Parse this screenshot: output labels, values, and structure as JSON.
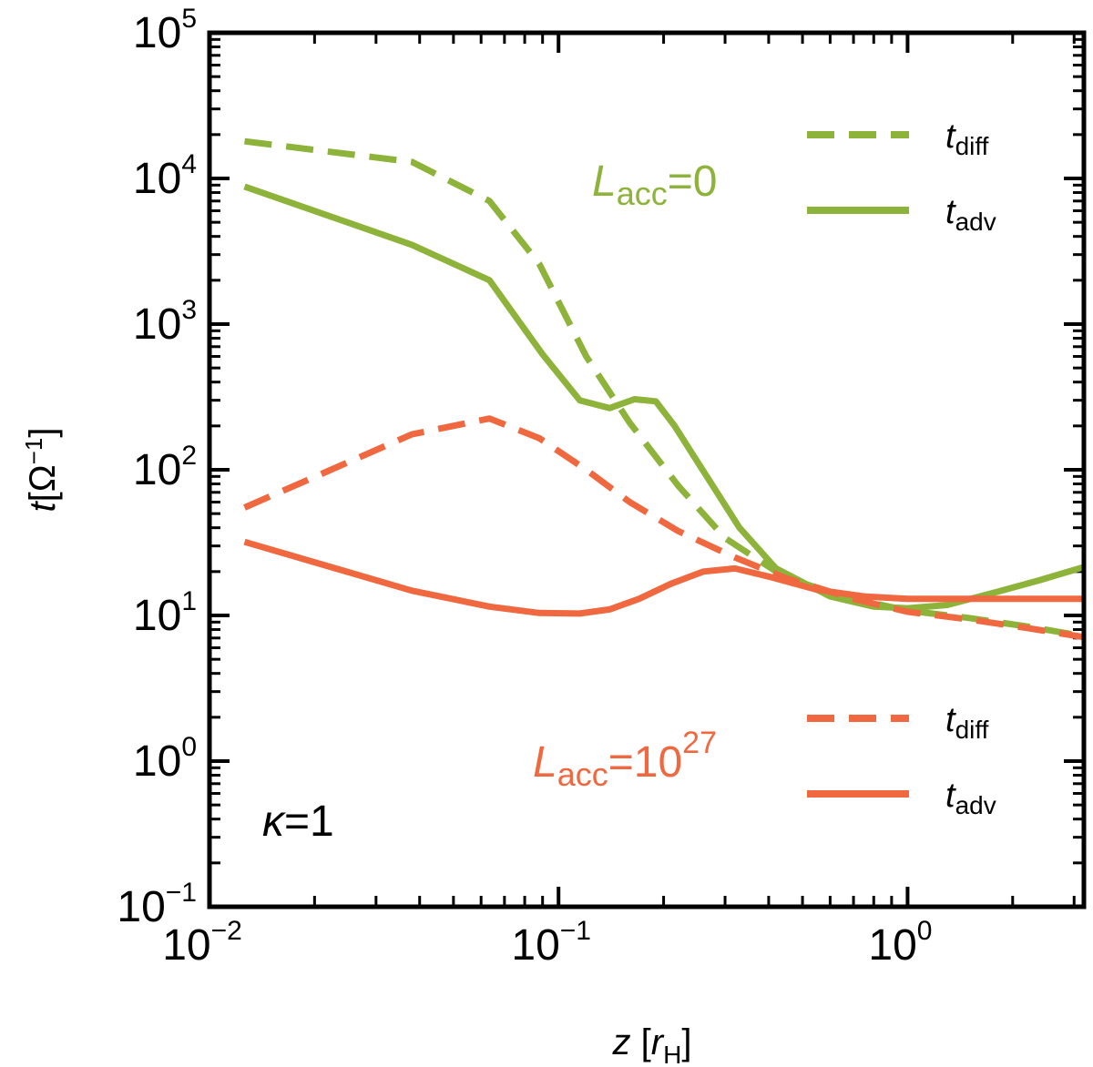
{
  "chart_data": {
    "type": "line",
    "xscale": "log",
    "yscale": "log",
    "xlim": [
      0.01,
      3.2
    ],
    "ylim": [
      0.1,
      100000
    ],
    "xlabel": {
      "var": "z",
      "open": "[",
      "unit": "r",
      "unit_sub": "H",
      "close": "]"
    },
    "ylabel": {
      "var": "t",
      "bracket": "[Ω",
      "sup": "−1",
      "close": "]"
    },
    "x_ticks": [
      {
        "value": 0.01,
        "base": "10",
        "exp": "−2"
      },
      {
        "value": 0.1,
        "base": "10",
        "exp": "−1"
      },
      {
        "value": 1,
        "base": "10",
        "exp": "0"
      }
    ],
    "y_ticks": [
      {
        "value": 0.1,
        "base": "10",
        "exp": "−1"
      },
      {
        "value": 1,
        "base": "10",
        "exp": "0"
      },
      {
        "value": 10,
        "base": "10",
        "exp": "1"
      },
      {
        "value": 100,
        "base": "10",
        "exp": "2"
      },
      {
        "value": 1000,
        "base": "10",
        "exp": "3"
      },
      {
        "value": 10000,
        "base": "10",
        "exp": "4"
      },
      {
        "value": 100000,
        "base": "10",
        "exp": "5"
      }
    ],
    "colors": {
      "green": "#8db33a",
      "orange": "#ef6840",
      "axis": "#000000"
    },
    "series": [
      {
        "name": "t_diff L_acc=0",
        "color": "#8db33a",
        "dash": true,
        "x": [
          0.0126,
          0.038,
          0.0634,
          0.088,
          0.12,
          0.16,
          0.22,
          0.3,
          0.45,
          0.7,
          1.0,
          1.5,
          2.2,
          3.2
        ],
        "y": [
          18000,
          13000,
          7000,
          2600,
          600,
          210,
          78,
          34,
          18,
          13,
          10.8,
          9.6,
          8.4,
          7.2
        ]
      },
      {
        "name": "t_adv L_acc=0",
        "color": "#8db33a",
        "dash": false,
        "x": [
          0.0126,
          0.038,
          0.0634,
          0.09,
          0.115,
          0.14,
          0.165,
          0.19,
          0.215,
          0.27,
          0.33,
          0.42,
          0.6,
          0.8,
          1.0,
          1.3,
          1.8,
          2.4,
          3.2
        ],
        "y": [
          8800,
          3500,
          2000,
          620,
          300,
          265,
          305,
          295,
          200,
          85,
          40,
          21,
          13.5,
          11.5,
          11.2,
          11.8,
          14.5,
          17.5,
          21.5
        ]
      },
      {
        "name": "t_diff L_acc=10^27",
        "color": "#ef6840",
        "dash": true,
        "x": [
          0.0126,
          0.038,
          0.0634,
          0.088,
          0.12,
          0.16,
          0.22,
          0.32,
          0.45,
          0.7,
          1.0,
          1.5,
          2.2,
          3.2
        ],
        "y": [
          55,
          175,
          225,
          165,
          100,
          60,
          38,
          25,
          18,
          13,
          10.6,
          9.4,
          8.2,
          7.1
        ]
      },
      {
        "name": "t_adv L_acc=10^27",
        "color": "#ef6840",
        "dash": false,
        "x": [
          0.0126,
          0.038,
          0.0634,
          0.088,
          0.115,
          0.14,
          0.17,
          0.21,
          0.26,
          0.32,
          0.4,
          0.55,
          0.75,
          1.0,
          1.5,
          2.2,
          3.2
        ],
        "y": [
          32,
          14.8,
          11.5,
          10.4,
          10.3,
          11,
          13,
          16.5,
          20,
          21,
          18.5,
          15,
          13.5,
          13,
          13,
          13,
          13
        ]
      }
    ],
    "legend": [
      {
        "series": 0,
        "label_main": "t",
        "label_sub": "diff"
      },
      {
        "series": 1,
        "label_main": "t",
        "label_sub": "adv"
      },
      {
        "series": 2,
        "label_main": "t",
        "label_sub": "diff"
      },
      {
        "series": 3,
        "label_main": "t",
        "label_sub": "adv"
      }
    ],
    "annotations": {
      "lacc0": {
        "main": "L",
        "sub": "acc",
        "rest": "=0",
        "color": "#8db33a"
      },
      "lacc27": {
        "main": "L",
        "sub": "acc",
        "rest": "=10",
        "sup": "27",
        "color": "#ef6840"
      },
      "kappa": {
        "main": "κ",
        "rest": "=1"
      }
    }
  }
}
